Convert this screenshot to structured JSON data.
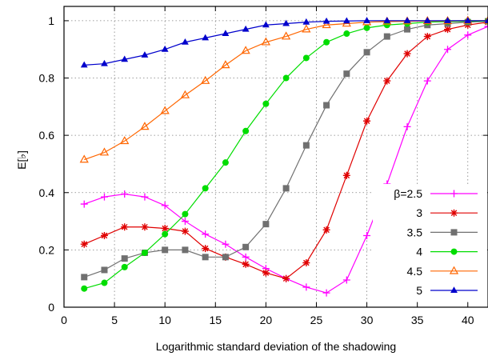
{
  "chart_data": {
    "type": "line",
    "xlabel": "Logarithmic standard deviation of the shadowing",
    "ylabel": "E[♭]",
    "xlim": [
      0,
      42
    ],
    "ylim": [
      0,
      1.05
    ],
    "xticks": [
      0,
      5,
      10,
      15,
      20,
      25,
      30,
      35,
      40
    ],
    "yticks": [
      0,
      0.2,
      0.4,
      0.6,
      0.8,
      1
    ],
    "ytick_labels": [
      "0",
      "0.2",
      "0.4",
      "0.6",
      "0.8",
      "1"
    ],
    "grid": true,
    "legend_position": "bottom-right",
    "x": [
      2,
      4,
      6,
      8,
      10,
      12,
      14,
      16,
      18,
      20,
      22,
      24,
      26,
      28,
      30,
      32,
      34,
      36,
      38,
      40,
      42
    ],
    "series": [
      {
        "name": "β=2.5",
        "color": "#ff00ff",
        "marker": "plus",
        "values": [
          0.36,
          0.385,
          0.395,
          0.385,
          0.355,
          0.3,
          0.255,
          0.22,
          0.175,
          0.135,
          0.1,
          0.07,
          0.05,
          0.095,
          0.25,
          0.43,
          0.63,
          0.79,
          0.9,
          0.95,
          0.98
        ]
      },
      {
        "name": "3",
        "color": "#e00000",
        "marker": "star",
        "values": [
          0.22,
          0.25,
          0.28,
          0.28,
          0.275,
          0.265,
          0.205,
          0.175,
          0.15,
          0.12,
          0.1,
          0.155,
          0.27,
          0.46,
          0.65,
          0.79,
          0.885,
          0.945,
          0.97,
          0.985,
          0.995
        ]
      },
      {
        "name": "3.5",
        "color": "#707070",
        "marker": "square",
        "values": [
          0.105,
          0.13,
          0.17,
          0.19,
          0.2,
          0.2,
          0.175,
          0.175,
          0.21,
          0.29,
          0.415,
          0.565,
          0.705,
          0.815,
          0.89,
          0.945,
          0.97,
          0.985,
          0.99,
          0.995,
          0.998
        ]
      },
      {
        "name": "4",
        "color": "#00dd00",
        "marker": "circle",
        "values": [
          0.065,
          0.085,
          0.14,
          0.19,
          0.255,
          0.325,
          0.415,
          0.505,
          0.615,
          0.71,
          0.8,
          0.87,
          0.925,
          0.955,
          0.975,
          0.985,
          0.99,
          0.995,
          0.997,
          0.998,
          0.999
        ]
      },
      {
        "name": "4.5",
        "color": "#ff6600",
        "marker": "triangle",
        "values": [
          0.515,
          0.54,
          0.58,
          0.63,
          0.685,
          0.74,
          0.79,
          0.845,
          0.895,
          0.925,
          0.945,
          0.97,
          0.985,
          0.99,
          0.995,
          0.997,
          0.998,
          0.999,
          0.999,
          1.0,
          1.0
        ]
      },
      {
        "name": "5",
        "color": "#0000cc",
        "marker": "triangle-filled",
        "values": [
          0.845,
          0.85,
          0.865,
          0.88,
          0.9,
          0.925,
          0.94,
          0.955,
          0.97,
          0.985,
          0.99,
          0.995,
          0.998,
          0.999,
          1.0,
          1.0,
          1.0,
          1.0,
          1.0,
          1.0,
          1.0
        ]
      }
    ]
  }
}
